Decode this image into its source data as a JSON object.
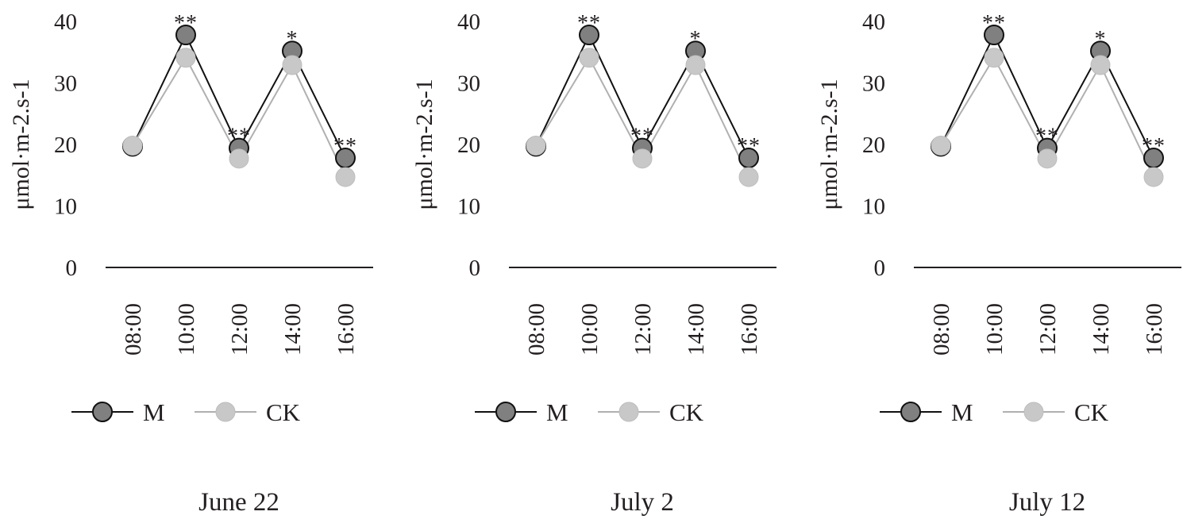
{
  "chart_data": [
    {
      "type": "line",
      "title": "June 22",
      "ylabel": "μmol·m-2.s-1",
      "xlabel": "",
      "ylim": [
        0,
        40
      ],
      "yticks": [
        "0",
        "10",
        "20",
        "30",
        "40"
      ],
      "categories": [
        "08:00",
        "10:00",
        "12:00",
        "14:00",
        "16:00"
      ],
      "series": [
        {
          "name": "M",
          "values": [
            19.7,
            37.8,
            19.4,
            35.2,
            17.8
          ],
          "color": "#808080",
          "line": "#111111"
        },
        {
          "name": "CK",
          "values": [
            19.8,
            34.1,
            17.7,
            32.9,
            14.7
          ],
          "color": "#c8c8c8",
          "line": "#b0b0b0"
        }
      ],
      "annotations": [
        "",
        "**",
        "**",
        "*",
        "**"
      ],
      "legend": "bottom"
    },
    {
      "type": "line",
      "title": "July 2",
      "ylabel": "μmol·m-2.s-1",
      "xlabel": "",
      "ylim": [
        0,
        40
      ],
      "yticks": [
        "0",
        "10",
        "20",
        "30",
        "40"
      ],
      "categories": [
        "08:00",
        "10:00",
        "12:00",
        "14:00",
        "16:00"
      ],
      "series": [
        {
          "name": "M",
          "values": [
            19.7,
            37.8,
            19.4,
            35.2,
            17.8
          ],
          "color": "#808080",
          "line": "#111111"
        },
        {
          "name": "CK",
          "values": [
            19.8,
            34.1,
            17.7,
            32.9,
            14.7
          ],
          "color": "#c8c8c8",
          "line": "#b0b0b0"
        }
      ],
      "annotations": [
        "",
        "**",
        "**",
        "*",
        "**"
      ],
      "legend": "bottom"
    },
    {
      "type": "line",
      "title": "July 12",
      "ylabel": "μmol·m-2.s-1",
      "xlabel": "",
      "ylim": [
        0,
        40
      ],
      "yticks": [
        "0",
        "10",
        "20",
        "30",
        "40"
      ],
      "categories": [
        "08:00",
        "10:00",
        "12:00",
        "14:00",
        "16:00"
      ],
      "series": [
        {
          "name": "M",
          "values": [
            19.7,
            37.8,
            19.4,
            35.2,
            17.8
          ],
          "color": "#808080",
          "line": "#111111"
        },
        {
          "name": "CK",
          "values": [
            19.8,
            34.1,
            17.7,
            32.9,
            14.7
          ],
          "color": "#c8c8c8",
          "line": "#b0b0b0"
        }
      ],
      "annotations": [
        "",
        "**",
        "**",
        "*",
        "**"
      ],
      "legend": "bottom"
    }
  ]
}
